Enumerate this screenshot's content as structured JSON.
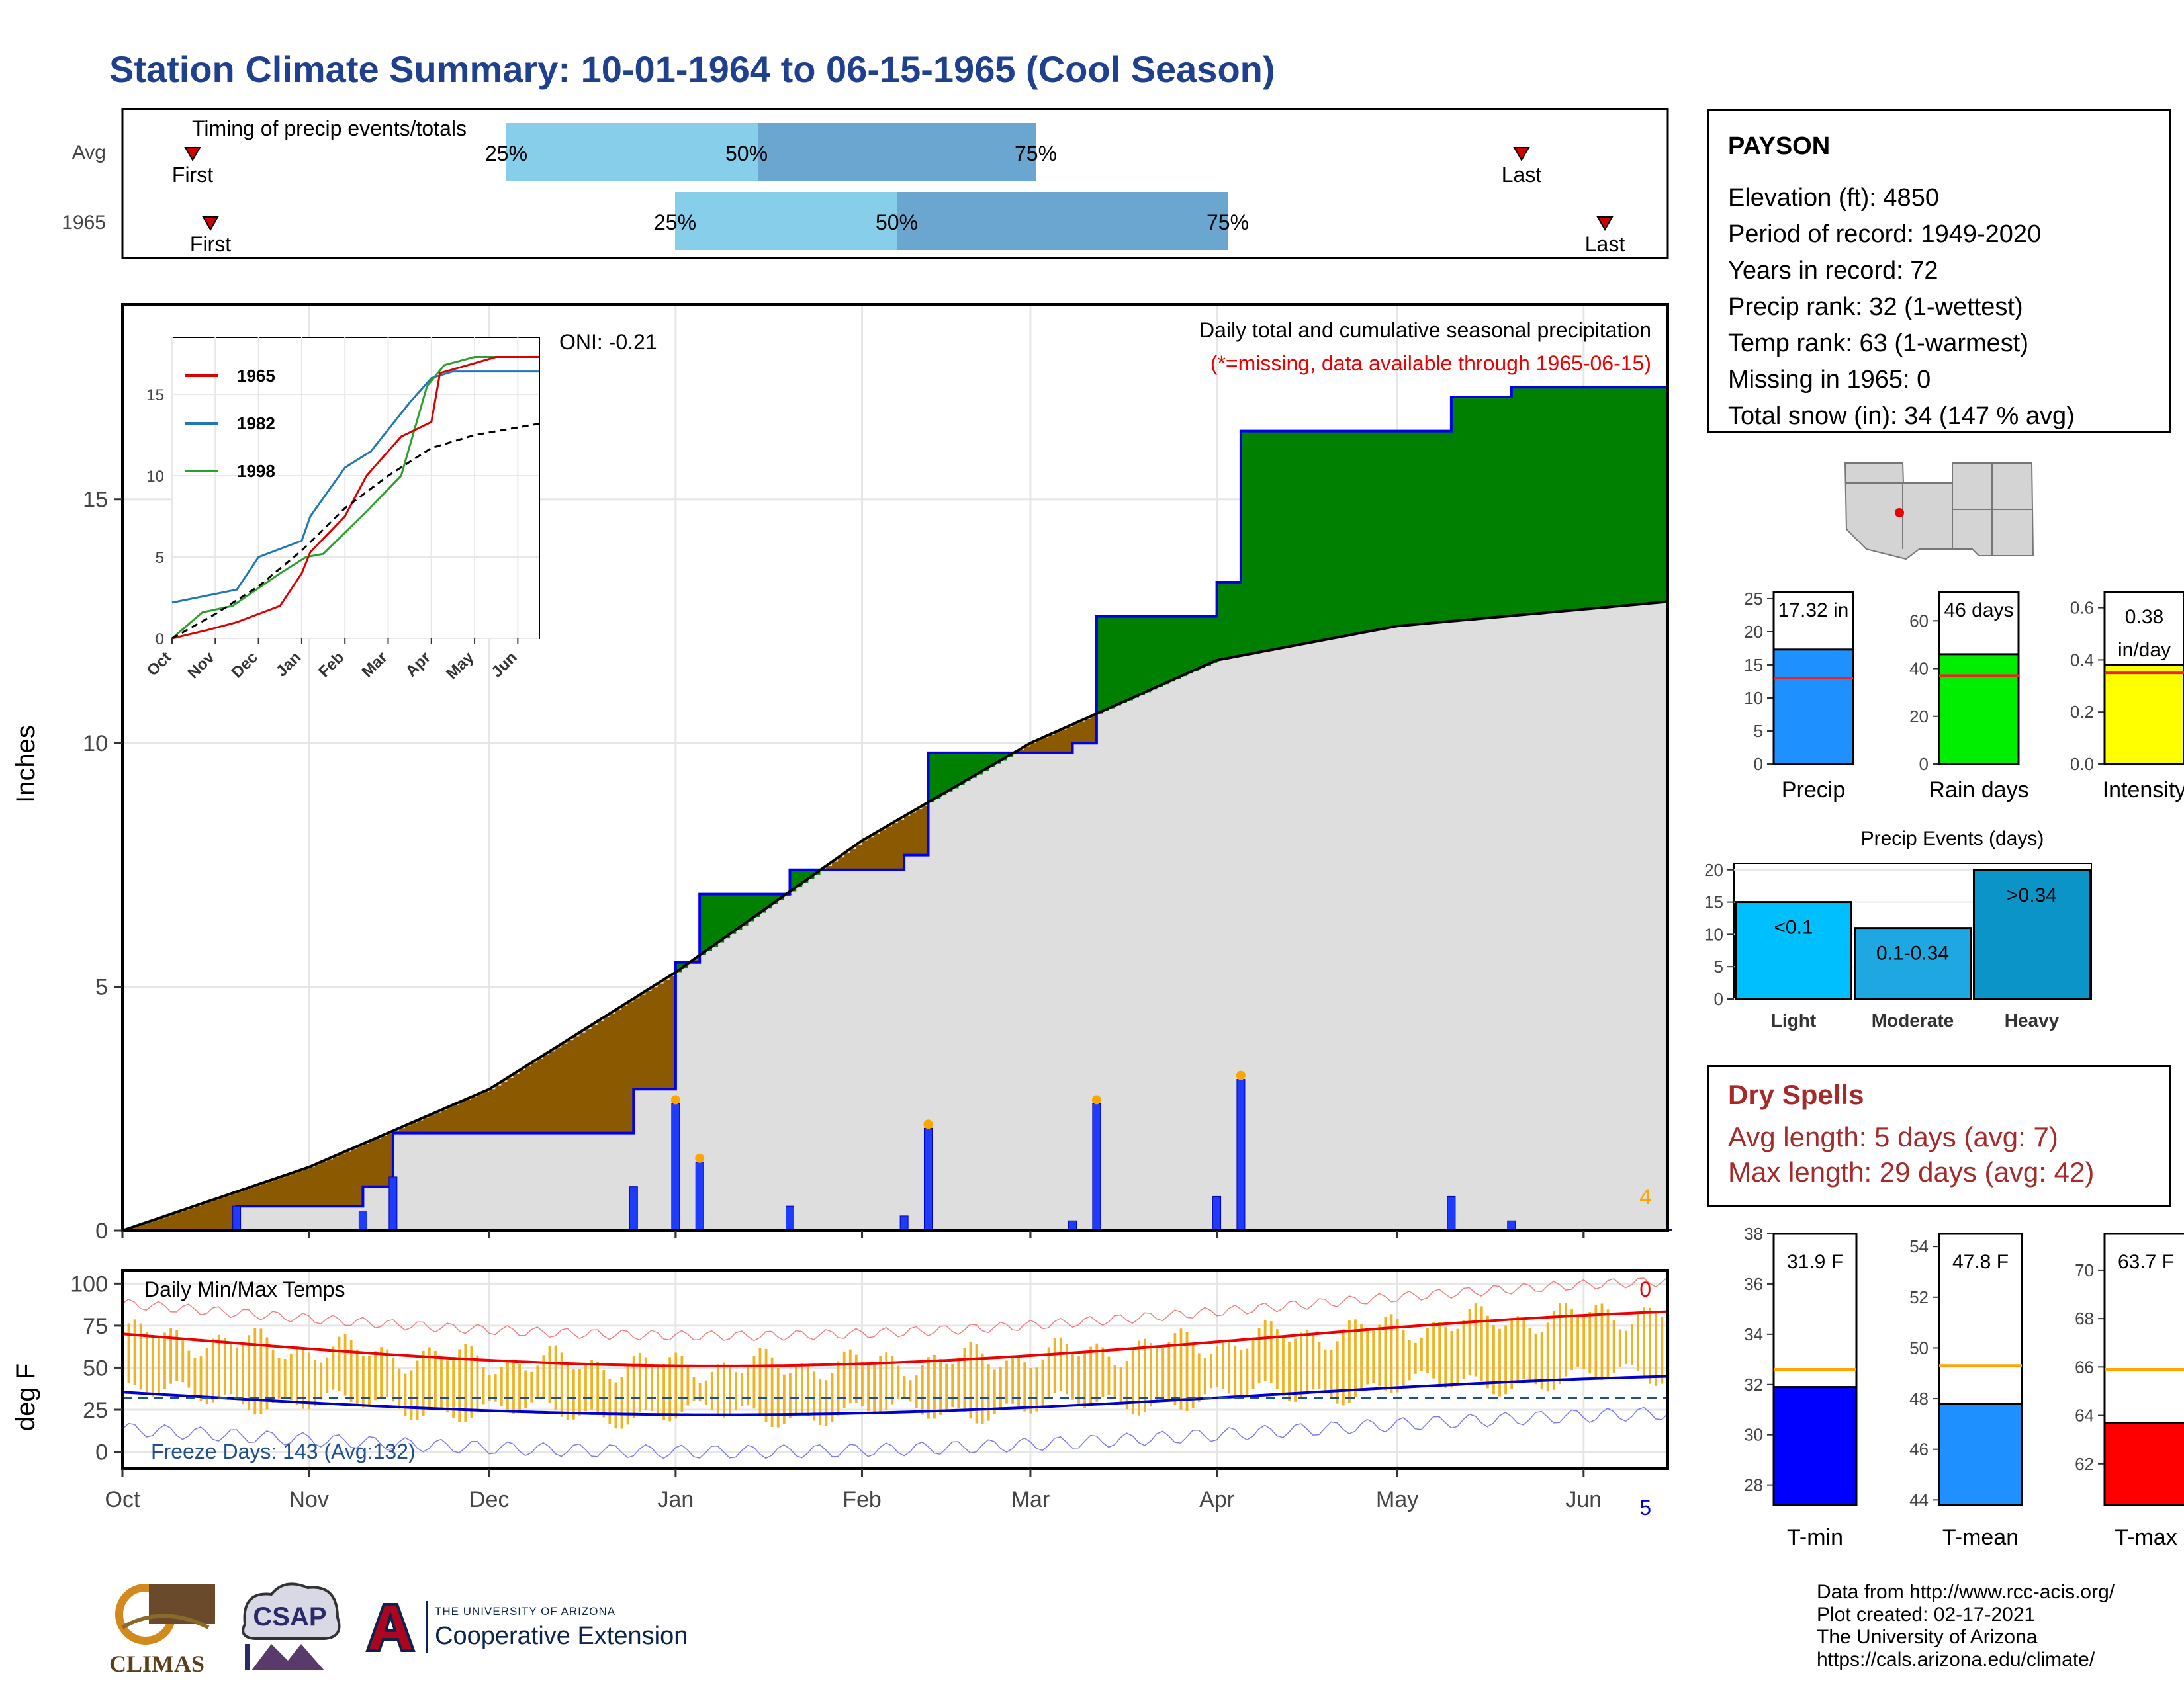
{
  "title": "Station Climate Summary: 10-01-1964 to 06-15-1965 (Cool Season)",
  "timing_panel": {
    "label": "Timing of precip events/totals",
    "rows": [
      {
        "name": "Avg",
        "first": "First",
        "last": "Last",
        "p25": "25%",
        "p50": "50%",
        "p75": "75%"
      },
      {
        "name": "1965",
        "first": "First",
        "last": "Last",
        "p25": "25%",
        "p50": "50%",
        "p75": "75%"
      }
    ]
  },
  "station": {
    "name": "PAYSON",
    "elevation": "Elevation (ft): 4850",
    "period": "Period of record: 1949-2020",
    "years": "Years in record: 72",
    "precip_rank": "Precip rank: 32 (1-wettest)",
    "temp_rank": "Temp rank: 63 (1-warmest)",
    "missing": "Missing in 1965: 0",
    "snow": "Total snow (in): 34 (147 % avg)"
  },
  "main_precip": {
    "ylabel": "Inches",
    "subtitle": "Daily total and cumulative seasonal precipitation",
    "missing_note": "(*=missing, data available through 1965-06-15)",
    "oni": "ONI: -0.21",
    "corner_count": "4",
    "yticks": [
      "0",
      "5",
      "10",
      "15"
    ],
    "months": [
      "Oct",
      "Nov",
      "Dec",
      "Jan",
      "Feb",
      "Mar",
      "Apr",
      "May",
      "Jun"
    ]
  },
  "temps": {
    "ylabel": "deg F",
    "label": "Daily Min/Max Temps",
    "freeze": "Freeze Days: 143 (Avg:132)",
    "top_count": "0",
    "bottom_count": "5",
    "yticks": [
      "0",
      "25",
      "50",
      "75",
      "100"
    ]
  },
  "summary_bars": {
    "precip": {
      "label": "Precip",
      "value_text": "17.32 in",
      "value": 17.32,
      "avg": 13.0,
      "ymax": 26,
      "yticks": [
        "0",
        "5",
        "10",
        "15",
        "20",
        "25"
      ]
    },
    "rain_days": {
      "label": "Rain days",
      "value_text": "46 days",
      "value": 46,
      "avg": 37,
      "ymax": 72,
      "yticks": [
        "0",
        "20",
        "40",
        "60"
      ]
    },
    "intensity": {
      "label": "Intensity",
      "value_text": "0.38 in/day",
      "value_line1": "0.38",
      "value_line2": "in/day",
      "value": 0.38,
      "avg": 0.35,
      "ymax": 0.66,
      "yticks": [
        "0.0",
        "0.2",
        "0.4",
        "0.6"
      ]
    }
  },
  "events": {
    "title": "Precip Events (days)",
    "categories": [
      "Light",
      "Moderate",
      "Heavy"
    ],
    "bar_labels": [
      "<0.1",
      "0.1-0.34",
      ">0.34"
    ],
    "values": [
      15,
      11,
      20
    ],
    "yticks": [
      "0",
      "5",
      "10",
      "15",
      "20"
    ]
  },
  "dry_spells": {
    "title": "Dry Spells",
    "avg": "Avg length: 5 days (avg: 7)",
    "max": "Max length: 29 days (avg: 42)"
  },
  "temp_bars": {
    "tmin": {
      "label": "T-min",
      "value_text": "31.9 F",
      "value": 31.9,
      "avg": 32.6,
      "ymin": 27.2,
      "ymax": 38,
      "yticks": [
        "28",
        "30",
        "32",
        "34",
        "36",
        "38"
      ]
    },
    "tmean": {
      "label": "T-mean",
      "value_text": "47.8 F",
      "value": 47.8,
      "avg": 49.3,
      "ymin": 43.8,
      "ymax": 54.5,
      "yticks": [
        "44",
        "46",
        "48",
        "50",
        "52",
        "54"
      ]
    },
    "tmax": {
      "label": "T-max",
      "value_text": "63.7 F",
      "value": 63.7,
      "avg": 65.9,
      "ymin": 60.3,
      "ymax": 71.5,
      "yticks": [
        "62",
        "64",
        "66",
        "68",
        "70"
      ]
    }
  },
  "inset": {
    "legend": [
      "1965",
      "1982",
      "1998"
    ],
    "months": [
      "Oct",
      "Nov",
      "Dec",
      "Jan",
      "Feb",
      "Mar",
      "Apr",
      "May",
      "Jun"
    ],
    "yticks": [
      "0",
      "5",
      "10",
      "15"
    ]
  },
  "footer": {
    "line1": "Data from http://www.rcc-acis.org/",
    "line2": "Plot created: 02-17-2021",
    "line3": "The University of Arizona",
    "line4": "https://cals.arizona.edu/climate/"
  },
  "logos": {
    "climas": "CLIMAS",
    "csap": "CSAP",
    "ua_small": "THE UNIVERSITY OF ARIZONA",
    "ua_big": "Cooperative Extension"
  },
  "chart_data": [
    {
      "type": "area",
      "title": "Daily total and cumulative seasonal precipitation",
      "ylabel": "Inches",
      "ylim": [
        0,
        19
      ],
      "series": [
        {
          "name": "1965",
          "x": [
            "1964-10-01",
            "1964-10-20",
            "1964-11-10",
            "1964-11-15",
            "1964-12-25",
            "1965-01-01",
            "1965-01-05",
            "1965-01-20",
            "1965-02-08",
            "1965-02-12",
            "1965-03-08",
            "1965-03-12",
            "1965-04-01",
            "1965-04-05",
            "1965-05-10",
            "1965-05-20",
            "1965-06-15"
          ],
          "values": [
            0,
            0.5,
            0.9,
            2.0,
            2.9,
            5.5,
            6.9,
            7.4,
            7.7,
            9.8,
            10.0,
            12.6,
            13.3,
            16.4,
            17.1,
            17.3,
            17.32
          ]
        },
        {
          "name": "Average cumulative",
          "x": [
            "1964-10-01",
            "1964-11-01",
            "1964-12-01",
            "1965-01-01",
            "1965-02-01",
            "1965-03-01",
            "1965-04-01",
            "1965-05-01",
            "1965-06-15"
          ],
          "values": [
            0,
            1.3,
            2.9,
            5.3,
            8.0,
            10.0,
            11.7,
            12.4,
            12.9
          ]
        }
      ]
    },
    {
      "type": "bar",
      "title": "Precip Events (days)",
      "categories": [
        "Light",
        "Moderate",
        "Heavy"
      ],
      "values": [
        15,
        11,
        20
      ],
      "ylim": [
        0,
        21
      ]
    }
  ]
}
